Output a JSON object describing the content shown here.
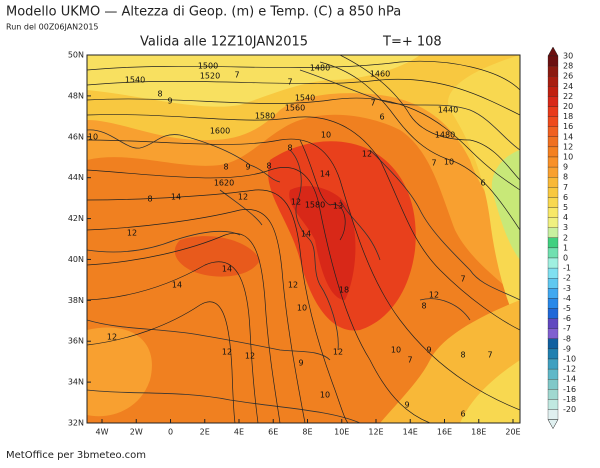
{
  "header": {
    "title": "Modello UKMO  — Altezza di Geop. (m) e Temp. (C) a 850 hPa",
    "run": "Run del 00Z06JAN2015",
    "valid": "Valida alle 12Z10JAN2015",
    "lead": "T=+ 108"
  },
  "lat_labels": [
    "50N",
    "48N",
    "46N",
    "44N",
    "42N",
    "40N",
    "38N",
    "36N",
    "34N",
    "32N"
  ],
  "lon_labels": [
    "4W",
    "2W",
    "0",
    "2E",
    "4E",
    "6E",
    "8E",
    "10E",
    "12E",
    "14E",
    "16E",
    "18E",
    "20E"
  ],
  "colorbar": {
    "levels": [
      {
        "label": "30",
        "color": "#6b1010"
      },
      {
        "label": "28",
        "color": "#8b1a10"
      },
      {
        "label": "26",
        "color": "#a81e10"
      },
      {
        "label": "24",
        "color": "#c02010"
      },
      {
        "label": "22",
        "color": "#d82818"
      },
      {
        "label": "20",
        "color": "#e83a1a"
      },
      {
        "label": "18",
        "color": "#ee4a1c"
      },
      {
        "label": "16",
        "color": "#f06020"
      },
      {
        "label": "14",
        "color": "#f07020"
      },
      {
        "label": "12",
        "color": "#f48020"
      },
      {
        "label": "10",
        "color": "#f89028"
      },
      {
        "label": "9",
        "color": "#f8a030"
      },
      {
        "label": "8",
        "color": "#f8b838"
      },
      {
        "label": "7",
        "color": "#f8c840"
      },
      {
        "label": "6",
        "color": "#f8d850"
      },
      {
        "label": "5",
        "color": "#f8e868"
      },
      {
        "label": "4",
        "color": "#f0f080"
      },
      {
        "label": "3",
        "color": "#c8f0a0"
      },
      {
        "label": "2",
        "color": "#40d080"
      },
      {
        "label": "1",
        "color": "#70e0b0"
      },
      {
        "label": "0",
        "color": "#a0f0e0"
      },
      {
        "label": "-1",
        "color": "#80e0f0"
      },
      {
        "label": "-2",
        "color": "#60c8f0"
      },
      {
        "label": "-3",
        "color": "#40a8f0"
      },
      {
        "label": "-4",
        "color": "#2888e8"
      },
      {
        "label": "-5",
        "color": "#2068d8"
      },
      {
        "label": "-6",
        "color": "#6048c0"
      },
      {
        "label": "-7",
        "color": "#8060d0"
      },
      {
        "label": "-8",
        "color": "#1060a0"
      },
      {
        "label": "-9",
        "color": "#2080b0"
      },
      {
        "label": "-10",
        "color": "#40a0c0"
      },
      {
        "label": "-12",
        "color": "#60b8c8"
      },
      {
        "label": "-14",
        "color": "#80c8c8"
      },
      {
        "label": "-16",
        "color": "#a0d8d0"
      },
      {
        "label": "-18",
        "color": "#c0e8e0"
      },
      {
        "label": "-20",
        "color": "#e0f0f0"
      }
    ]
  },
  "contour_labels": [
    "1500",
    "1520",
    "1540",
    "1480",
    "1460",
    "1560",
    "1540",
    "1580",
    "1600",
    "1440",
    "1480",
    "1620",
    "1580",
    "7",
    "7",
    "8",
    "9",
    "7",
    "6",
    "8",
    "10",
    "12",
    "10",
    "8",
    "9",
    "8",
    "7",
    "10",
    "14",
    "14",
    "12",
    "8",
    "6",
    "12",
    "13",
    "12",
    "14",
    "14",
    "14",
    "12",
    "18",
    "12",
    "8",
    "10",
    "7",
    "12",
    "12",
    "12",
    "12",
    "10",
    "9",
    "8",
    "7",
    "9",
    "7",
    "10",
    "9",
    "6"
  ],
  "footer": "MetOffice per 3bmeteo.com"
}
